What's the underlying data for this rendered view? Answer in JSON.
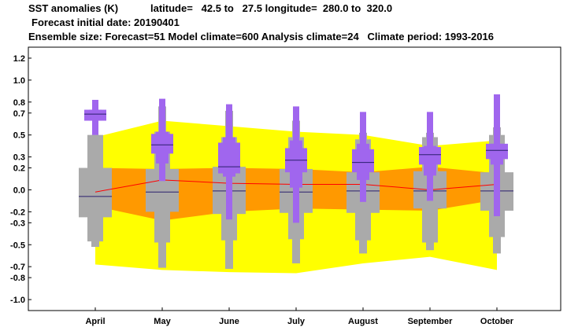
{
  "header": {
    "title": "SST anomalies (K)",
    "region": "latitude=   42.5 to   27.5 longitude=  280.0 to  320.0",
    "init_date": "Forecast initial date: 20190401",
    "ensemble": "Ensemble size: Forecast=51 Model climate=600 Analysis climate=24   Climate period: 1993-2016"
  },
  "colors": {
    "climate_outer": "#ffff00",
    "climate_inner": "#ff9900",
    "climate_median": "#ff0000",
    "forecast_box": "#a066ee",
    "forecast_median": "#2a1f6e",
    "model_climate_box": "#aaaaaa",
    "model_climate_median": "#2a1f6e"
  },
  "chart_data": {
    "type": "box",
    "title": "SST anomalies (K)",
    "xlabel": "",
    "ylabel": "",
    "ylim": [
      -1.1,
      1.3
    ],
    "yticks": [
      1.2,
      1.0,
      0.8,
      0.7,
      0.5,
      0.3,
      0.2,
      0.0,
      -0.2,
      -0.3,
      -0.5,
      -0.7,
      -0.8,
      -1.0
    ],
    "grid": false,
    "categories": [
      "April",
      "May",
      "June",
      "July",
      "August",
      "September",
      "October"
    ],
    "analysis_climate": {
      "p5": [
        -0.68,
        -0.73,
        -0.75,
        -0.76,
        -0.67,
        -0.61,
        -0.73
      ],
      "p25": [
        -0.15,
        -0.28,
        -0.2,
        -0.17,
        -0.18,
        -0.19,
        -0.09
      ],
      "median": [
        -0.02,
        0.09,
        0.06,
        0.05,
        0.05,
        0.0,
        0.05
      ],
      "p75": [
        0.2,
        0.19,
        0.2,
        0.19,
        0.16,
        0.21,
        0.15
      ],
      "p95": [
        0.48,
        0.63,
        0.58,
        0.53,
        0.5,
        0.4,
        0.45
      ]
    },
    "model_climate": {
      "min": [
        -0.52,
        -0.71,
        -0.72,
        -0.67,
        -0.58,
        -0.55,
        -0.58
      ],
      "p10": [
        -0.47,
        -0.48,
        -0.46,
        -0.45,
        -0.46,
        -0.48,
        -0.43
      ],
      "p25": [
        -0.25,
        -0.2,
        -0.22,
        -0.21,
        -0.21,
        -0.17,
        -0.19
      ],
      "median": [
        -0.06,
        -0.02,
        -0.01,
        -0.02,
        -0.01,
        -0.01,
        -0.01
      ],
      "p75": [
        0.2,
        0.19,
        0.21,
        0.19,
        0.16,
        0.17,
        0.16
      ],
      "p90": [
        0.5,
        0.53,
        0.48,
        0.48,
        0.46,
        0.48,
        0.5
      ],
      "max": [
        0.5,
        0.76,
        0.72,
        0.63,
        0.52,
        0.52,
        0.57
      ]
    },
    "forecast": {
      "min": [
        0.5,
        0.08,
        -0.27,
        -0.3,
        -0.11,
        -0.1,
        -0.24
      ],
      "p10": [
        0.63,
        0.24,
        0.12,
        0.02,
        0.09,
        0.13,
        0.23
      ],
      "p25": [
        0.63,
        0.33,
        0.15,
        0.16,
        0.16,
        0.23,
        0.28
      ],
      "median": [
        0.69,
        0.41,
        0.21,
        0.27,
        0.25,
        0.32,
        0.36
      ],
      "p75": [
        0.73,
        0.51,
        0.43,
        0.38,
        0.37,
        0.39,
        0.42
      ],
      "p90": [
        0.73,
        0.53,
        0.48,
        0.45,
        0.42,
        0.4,
        0.42
      ],
      "max": [
        0.82,
        0.83,
        0.78,
        0.76,
        0.71,
        0.71,
        0.87
      ]
    }
  }
}
